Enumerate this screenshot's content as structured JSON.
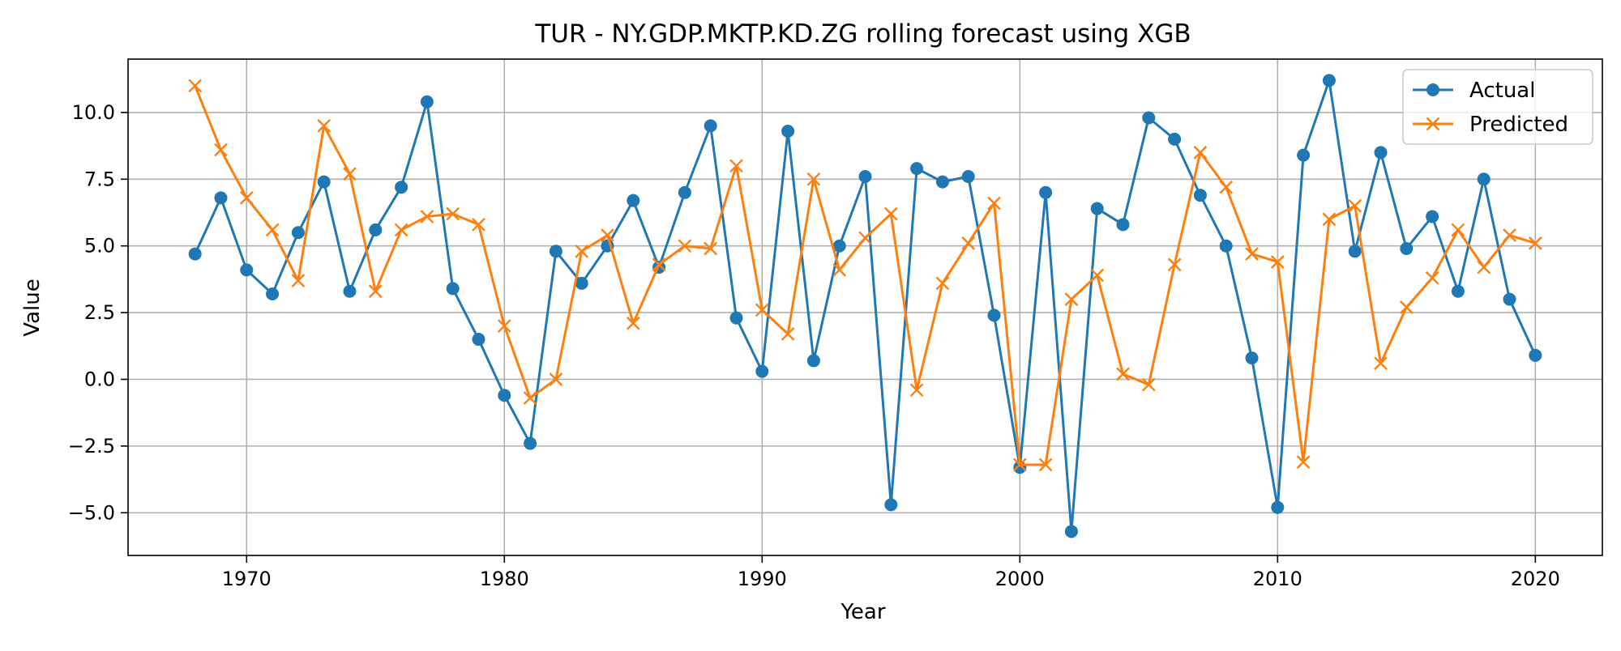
{
  "chart_data": {
    "type": "line",
    "title": "TUR - NY.GDP.MKTP.KD.ZG rolling forecast using XGB",
    "xlabel": "Year",
    "ylabel": "Value",
    "xlim": [
      1965.4,
      2022.6
    ],
    "ylim": [
      -6.6,
      12.0
    ],
    "xticks": [
      1970,
      1980,
      1990,
      2000,
      2010,
      2020
    ],
    "yticks": [
      -5.0,
      -2.5,
      0.0,
      2.5,
      5.0,
      7.5,
      10.0
    ],
    "xtick_labels": [
      "1970",
      "1980",
      "1990",
      "2000",
      "2010",
      "2020"
    ],
    "ytick_labels": [
      "−5.0",
      "−2.5",
      "0.0",
      "2.5",
      "5.0",
      "7.5",
      "10.0"
    ],
    "grid": true,
    "legend_position": "top-right",
    "x": [
      1968,
      1969,
      1970,
      1971,
      1972,
      1973,
      1974,
      1975,
      1976,
      1977,
      1978,
      1979,
      1980,
      1981,
      1982,
      1983,
      1984,
      1985,
      1986,
      1987,
      1988,
      1989,
      1990,
      1991,
      1992,
      1993,
      1994,
      1995,
      1996,
      1997,
      1998,
      1999,
      2000,
      2001,
      2002,
      2003,
      2004,
      2005,
      2006,
      2007,
      2008,
      2009,
      2010,
      2011,
      2012,
      2013,
      2014,
      2015,
      2016,
      2017,
      2018,
      2019,
      2020
    ],
    "series": [
      {
        "name": "Actual",
        "color": "#1f77b4",
        "marker": "circle",
        "values": [
          4.7,
          6.8,
          4.1,
          3.2,
          5.5,
          7.4,
          3.3,
          5.6,
          7.2,
          10.4,
          3.4,
          1.5,
          -0.6,
          -2.4,
          4.8,
          3.6,
          5.0,
          6.7,
          4.2,
          7.0,
          9.5,
          2.3,
          0.3,
          9.3,
          0.7,
          5.0,
          7.6,
          -4.7,
          7.9,
          7.4,
          7.6,
          2.4,
          -3.3,
          7.0,
          -5.7,
          6.4,
          5.8,
          9.8,
          9.0,
          6.9,
          5.0,
          0.8,
          -4.8,
          8.4,
          11.2,
          4.8,
          8.5,
          4.9,
          6.1,
          3.3,
          7.5,
          3.0,
          0.9
        ]
      },
      {
        "name": "Predicted",
        "color": "#ff7f0e",
        "marker": "x",
        "values": [
          11.0,
          8.6,
          6.8,
          5.6,
          3.7,
          9.5,
          7.7,
          3.3,
          5.6,
          6.1,
          6.2,
          5.8,
          2.0,
          -0.7,
          0.0,
          4.8,
          5.4,
          2.1,
          4.3,
          5.0,
          4.9,
          8.0,
          2.6,
          1.7,
          7.5,
          4.1,
          5.3,
          6.2,
          -0.4,
          3.6,
          5.1,
          6.6,
          -3.2,
          -3.2,
          3.0,
          3.9,
          0.2,
          -0.2,
          4.3,
          8.5,
          7.2,
          4.7,
          4.4,
          -3.1,
          6.0,
          6.5,
          0.6,
          2.7,
          3.8,
          5.6,
          4.2,
          5.4,
          5.1
        ]
      }
    ]
  }
}
